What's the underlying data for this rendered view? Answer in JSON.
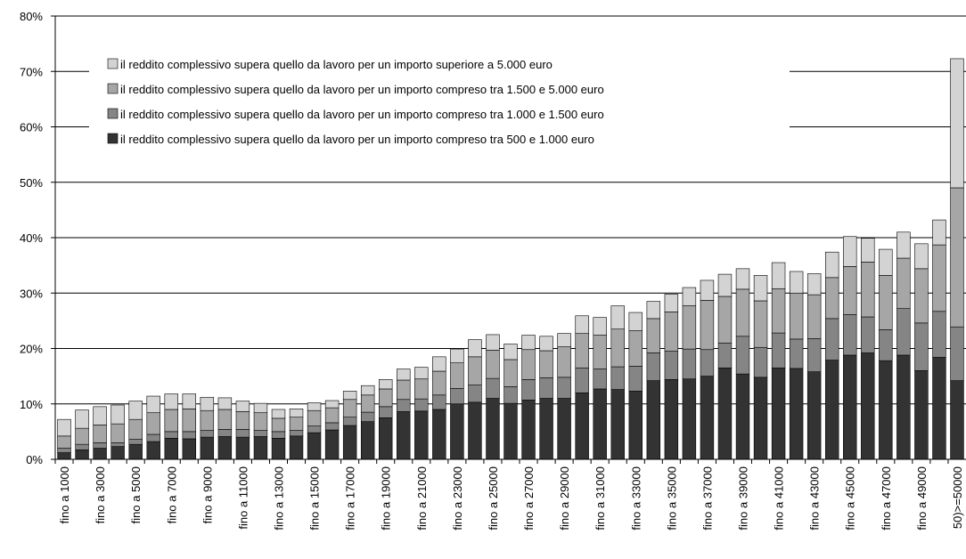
{
  "chart_data": {
    "type": "stacked_bar",
    "categories": [
      "fino a 1000",
      null,
      "fino a 3000",
      null,
      "fino a 5000",
      null,
      "fino a 7000",
      null,
      "fino a 9000",
      null,
      "fino a 11000",
      null,
      "fino a 13000",
      null,
      "fino a 15000",
      null,
      "fino a 17000",
      null,
      "fino a 19000",
      null,
      "fino a 21000",
      null,
      "fino a 23000",
      null,
      "fino a 25000",
      null,
      "fino a 27000",
      null,
      "fino a 29000",
      null,
      "fino a 31000",
      null,
      "fino a 33000",
      null,
      "fino a 35000",
      null,
      "fino a 37000",
      null,
      "fino a 39000",
      null,
      "fino a 41000",
      null,
      "fino a 43000",
      null,
      "fino a 45000",
      null,
      "fino a 47000",
      null,
      "fino a 49000",
      null,
      "50)>=50000"
    ],
    "series": [
      {
        "name": "il reddito complessivo supera quello da lavoro per un importo superiore a 5.000 euro",
        "color": "#d3d3d3",
        "values": [
          3.0,
          3.3,
          3.3,
          3.4,
          3.3,
          3.0,
          2.8,
          2.7,
          2.4,
          2.1,
          1.9,
          1.7,
          1.6,
          1.5,
          1.4,
          1.3,
          1.5,
          1.7,
          1.7,
          2.0,
          2.1,
          2.6,
          2.5,
          3.1,
          2.8,
          2.8,
          2.6,
          2.6,
          2.4,
          3.2,
          3.2,
          4.2,
          3.3,
          3.1,
          3.2,
          3.3,
          3.6,
          4.0,
          3.7,
          4.6,
          4.7,
          3.9,
          3.8,
          4.6,
          5.4,
          4.3,
          4.7,
          4.7,
          4.5,
          4.5,
          23.3
        ]
      },
      {
        "name": "il reddito complessivo supera quello da lavoro per un importo compreso tra 1.500 e 5.000 euro",
        "color": "#a6a6a6",
        "values": [
          2.2,
          2.9,
          3.2,
          3.4,
          3.6,
          3.9,
          4.0,
          4.1,
          3.6,
          3.6,
          3.2,
          3.2,
          2.4,
          2.4,
          2.8,
          2.7,
          3.2,
          3.1,
          3.2,
          3.5,
          3.6,
          4.3,
          4.6,
          5.1,
          5.1,
          4.9,
          5.4,
          4.9,
          5.5,
          6.2,
          6.1,
          6.8,
          6.4,
          6.2,
          7.1,
          7.8,
          8.9,
          8.4,
          8.5,
          8.4,
          8.0,
          8.3,
          7.9,
          7.4,
          8.7,
          9.9,
          9.8,
          9.1,
          9.8,
          12.0,
          25.1
        ]
      },
      {
        "name": "il reddito complessivo supera quello da lavoro per un importo compreso tra 1.000 e 1.500 euro",
        "color": "#858585",
        "values": [
          0.8,
          1.0,
          1.0,
          0.7,
          0.9,
          1.3,
          1.2,
          1.3,
          1.2,
          1.3,
          1.4,
          1.1,
          1.2,
          1.0,
          1.2,
          1.3,
          1.5,
          1.7,
          2.0,
          2.2,
          2.2,
          2.6,
          2.8,
          3.1,
          3.6,
          3.0,
          3.7,
          3.7,
          3.8,
          4.5,
          3.6,
          4.1,
          4.5,
          5.0,
          5.1,
          5.4,
          4.8,
          4.5,
          6.8,
          5.4,
          6.3,
          5.3,
          6.0,
          7.5,
          7.3,
          6.5,
          5.6,
          8.4,
          8.6,
          8.3,
          9.7
        ]
      },
      {
        "name": "il reddito complessivo supera quello da lavoro per un importo compreso tra 500 e 1.000 euro",
        "color": "#333333",
        "values": [
          1.2,
          1.7,
          2.0,
          2.3,
          2.7,
          3.2,
          3.8,
          3.7,
          4.0,
          4.1,
          4.0,
          4.1,
          3.8,
          4.2,
          4.8,
          5.3,
          6.1,
          6.8,
          7.5,
          8.6,
          8.7,
          9.0,
          10.0,
          10.3,
          11.0,
          10.1,
          10.7,
          11.0,
          11.0,
          12.0,
          12.7,
          12.6,
          12.3,
          14.2,
          14.4,
          14.5,
          15.0,
          16.5,
          15.4,
          14.8,
          16.5,
          16.4,
          15.8,
          17.9,
          18.8,
          19.2,
          17.8,
          18.8,
          16.0,
          18.4,
          14.2
        ]
      }
    ],
    "ylim": [
      0,
      80
    ],
    "yticks": [
      {
        "value": 0,
        "label": "0%"
      },
      {
        "value": 10,
        "label": "10%"
      },
      {
        "value": 20,
        "label": "20%"
      },
      {
        "value": 30,
        "label": "30%"
      },
      {
        "value": 40,
        "label": "40%"
      },
      {
        "value": 50,
        "label": "50%"
      },
      {
        "value": 60,
        "label": "60%"
      },
      {
        "value": 70,
        "label": "70%"
      },
      {
        "value": 80,
        "label": "80%"
      }
    ],
    "grid": true
  }
}
